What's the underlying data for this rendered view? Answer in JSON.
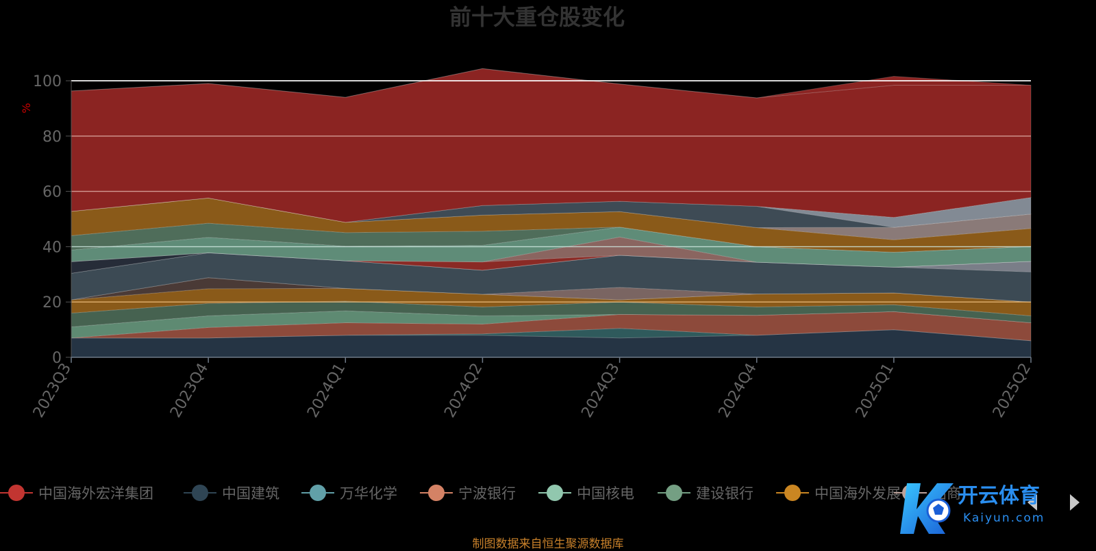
{
  "chart_data": {
    "type": "area",
    "title": "前十大重仓股变化",
    "ylabel": "%",
    "ylim": [
      0,
      100
    ],
    "yticks": [
      0,
      20,
      40,
      60,
      80,
      100
    ],
    "categories": [
      "2023Q3",
      "2023Q4",
      "2024Q1",
      "2024Q2",
      "2024Q3",
      "2024Q4",
      "2025Q1",
      "2025Q2"
    ],
    "stacked": true,
    "series": [
      {
        "name": "",
        "color": "#253444",
        "values": [
          7,
          7,
          8,
          8,
          7,
          8,
          10,
          6
        ]
      },
      {
        "name": "",
        "color": "#2f5a5c",
        "values": [
          0,
          0,
          0,
          0.5,
          3.5,
          0,
          0,
          0
        ]
      },
      {
        "name": "",
        "color": "#8d4a3b",
        "values": [
          0,
          3.8,
          4.5,
          3.5,
          5,
          7.2,
          6.5,
          6.5
        ]
      },
      {
        "name": "",
        "color": "#5e8a72",
        "values": [
          4,
          4.2,
          4.3,
          3,
          0,
          0,
          0,
          0
        ]
      },
      {
        "name": "",
        "color": "#466250",
        "values": [
          5,
          4.5,
          3.5,
          3.2,
          4.5,
          3,
          2.5,
          2.5
        ]
      },
      {
        "name": "",
        "color": "#8a5a19",
        "values": [
          4.8,
          5.3,
          4.6,
          4.6,
          0.8,
          4.7,
          4.3,
          5
        ]
      },
      {
        "name": "",
        "color": "#4a3a36",
        "values": [
          0,
          4,
          0,
          0,
          0,
          0,
          0,
          0
        ]
      },
      {
        "name": "",
        "color": "#7a6562",
        "values": [
          0,
          0,
          0,
          0,
          4.5,
          0,
          0,
          0
        ]
      },
      {
        "name": "",
        "color": "#3c4a54",
        "values": [
          9.6,
          9,
          10,
          8.7,
          11.6,
          11.5,
          9.3,
          10.9
        ]
      },
      {
        "name": "",
        "color": "#7a7e88",
        "values": [
          0,
          0,
          0,
          0,
          0,
          0,
          0,
          3.8
        ]
      },
      {
        "name": "",
        "color": "#262c38",
        "values": [
          4.2,
          0,
          0,
          0,
          0,
          0,
          0,
          0
        ]
      },
      {
        "name": "",
        "color": "#8a2a25",
        "values": [
          0,
          0,
          0,
          3,
          0,
          0,
          0,
          0
        ]
      },
      {
        "name": "",
        "color": "#8a6560",
        "values": [
          0,
          0,
          0,
          0,
          6.6,
          0,
          0,
          0
        ]
      },
      {
        "name": "",
        "color": "#5f8c78",
        "values": [
          4.2,
          5.6,
          5.3,
          6,
          3.6,
          5.6,
          5.4,
          5.4
        ]
      },
      {
        "name": "",
        "color": "#4f6d5a",
        "values": [
          5.2,
          5.1,
          4.9,
          5.1,
          0,
          0,
          0,
          0
        ]
      },
      {
        "name": "",
        "color": "#8a5a19",
        "values": [
          8.8,
          9.1,
          3.7,
          5.8,
          5.6,
          6.9,
          4.5,
          6.5
        ]
      },
      {
        "name": "",
        "color": "#8a7a78",
        "values": [
          0,
          0,
          0,
          0,
          0,
          0,
          4.5,
          5.2
        ]
      },
      {
        "name": "",
        "color": "#3e4b55",
        "values": [
          0,
          0,
          0,
          3.5,
          3.7,
          7.7,
          0,
          0
        ]
      },
      {
        "name": "",
        "color": "#828a94",
        "values": [
          0,
          0,
          0,
          0,
          0,
          0,
          3.6,
          6
        ]
      },
      {
        "name": "",
        "color": "#8b2422",
        "values": [
          43.5,
          41.4,
          45.2,
          49.5,
          42.4,
          39.2,
          47.8,
          40.6
        ]
      },
      {
        "name": "中国海外宏洋集团",
        "color": "#8b2422",
        "values": [
          0,
          0,
          0,
          0,
          0,
          0,
          3.2,
          0
        ]
      }
    ]
  },
  "legend": {
    "items": [
      {
        "label": "中国海外宏洋集团",
        "color": "#c23531"
      },
      {
        "label": "中国建筑",
        "color": "#2f4554"
      },
      {
        "label": "万华化学",
        "color": "#61a0a8"
      },
      {
        "label": "宁波银行",
        "color": "#d48265"
      },
      {
        "label": "中国核电",
        "color": "#91c7ae"
      },
      {
        "label": "建设银行",
        "color": "#749f83"
      },
      {
        "label": "中国海外发展",
        "color": "#ca8622"
      },
      {
        "label": "招商",
        "color": "#bda29a"
      }
    ]
  },
  "footer": {
    "source": "制图数据来自恒生聚源数据库"
  },
  "watermark": {
    "brand": "开云体育",
    "domain": "Kaiyun.com"
  },
  "colors": {
    "title": "#333333",
    "axis_label": "#666666",
    "ylabel": "#cc0000",
    "source": "#c8802a",
    "background": "#000000"
  }
}
